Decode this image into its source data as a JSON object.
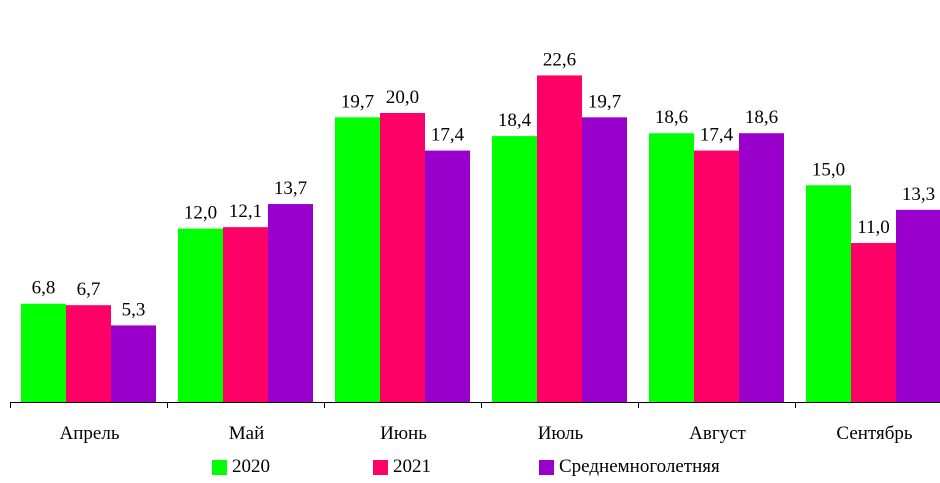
{
  "chart_data": {
    "type": "bar",
    "categories": [
      "Апрель",
      "Май",
      "Июнь",
      "Июль",
      "Август",
      "Сентябрь"
    ],
    "series": [
      {
        "name": "2020",
        "color": "#00ff00",
        "values": [
          6.8,
          12.0,
          19.7,
          18.4,
          18.6,
          15.0
        ],
        "labels": [
          "6,8",
          "12,0",
          "19,7",
          "18,4",
          "18,6",
          "15,0"
        ]
      },
      {
        "name": "2021",
        "color": "#ff0066",
        "values": [
          6.7,
          12.1,
          20.0,
          22.6,
          17.4,
          11.0
        ],
        "labels": [
          "6,7",
          "12,1",
          "20,0",
          "22,6",
          "17,4",
          "11,0"
        ]
      },
      {
        "name": "Среднемноголетняя",
        "color": "#9900cc",
        "values": [
          5.3,
          13.7,
          17.4,
          19.7,
          18.6,
          13.3
        ],
        "labels": [
          "5,3",
          "13,7",
          "17,4",
          "19,7",
          "18,6",
          "13,3"
        ]
      }
    ],
    "ylim": [
      0,
      25
    ],
    "grid": false,
    "legend_position": "bottom"
  }
}
